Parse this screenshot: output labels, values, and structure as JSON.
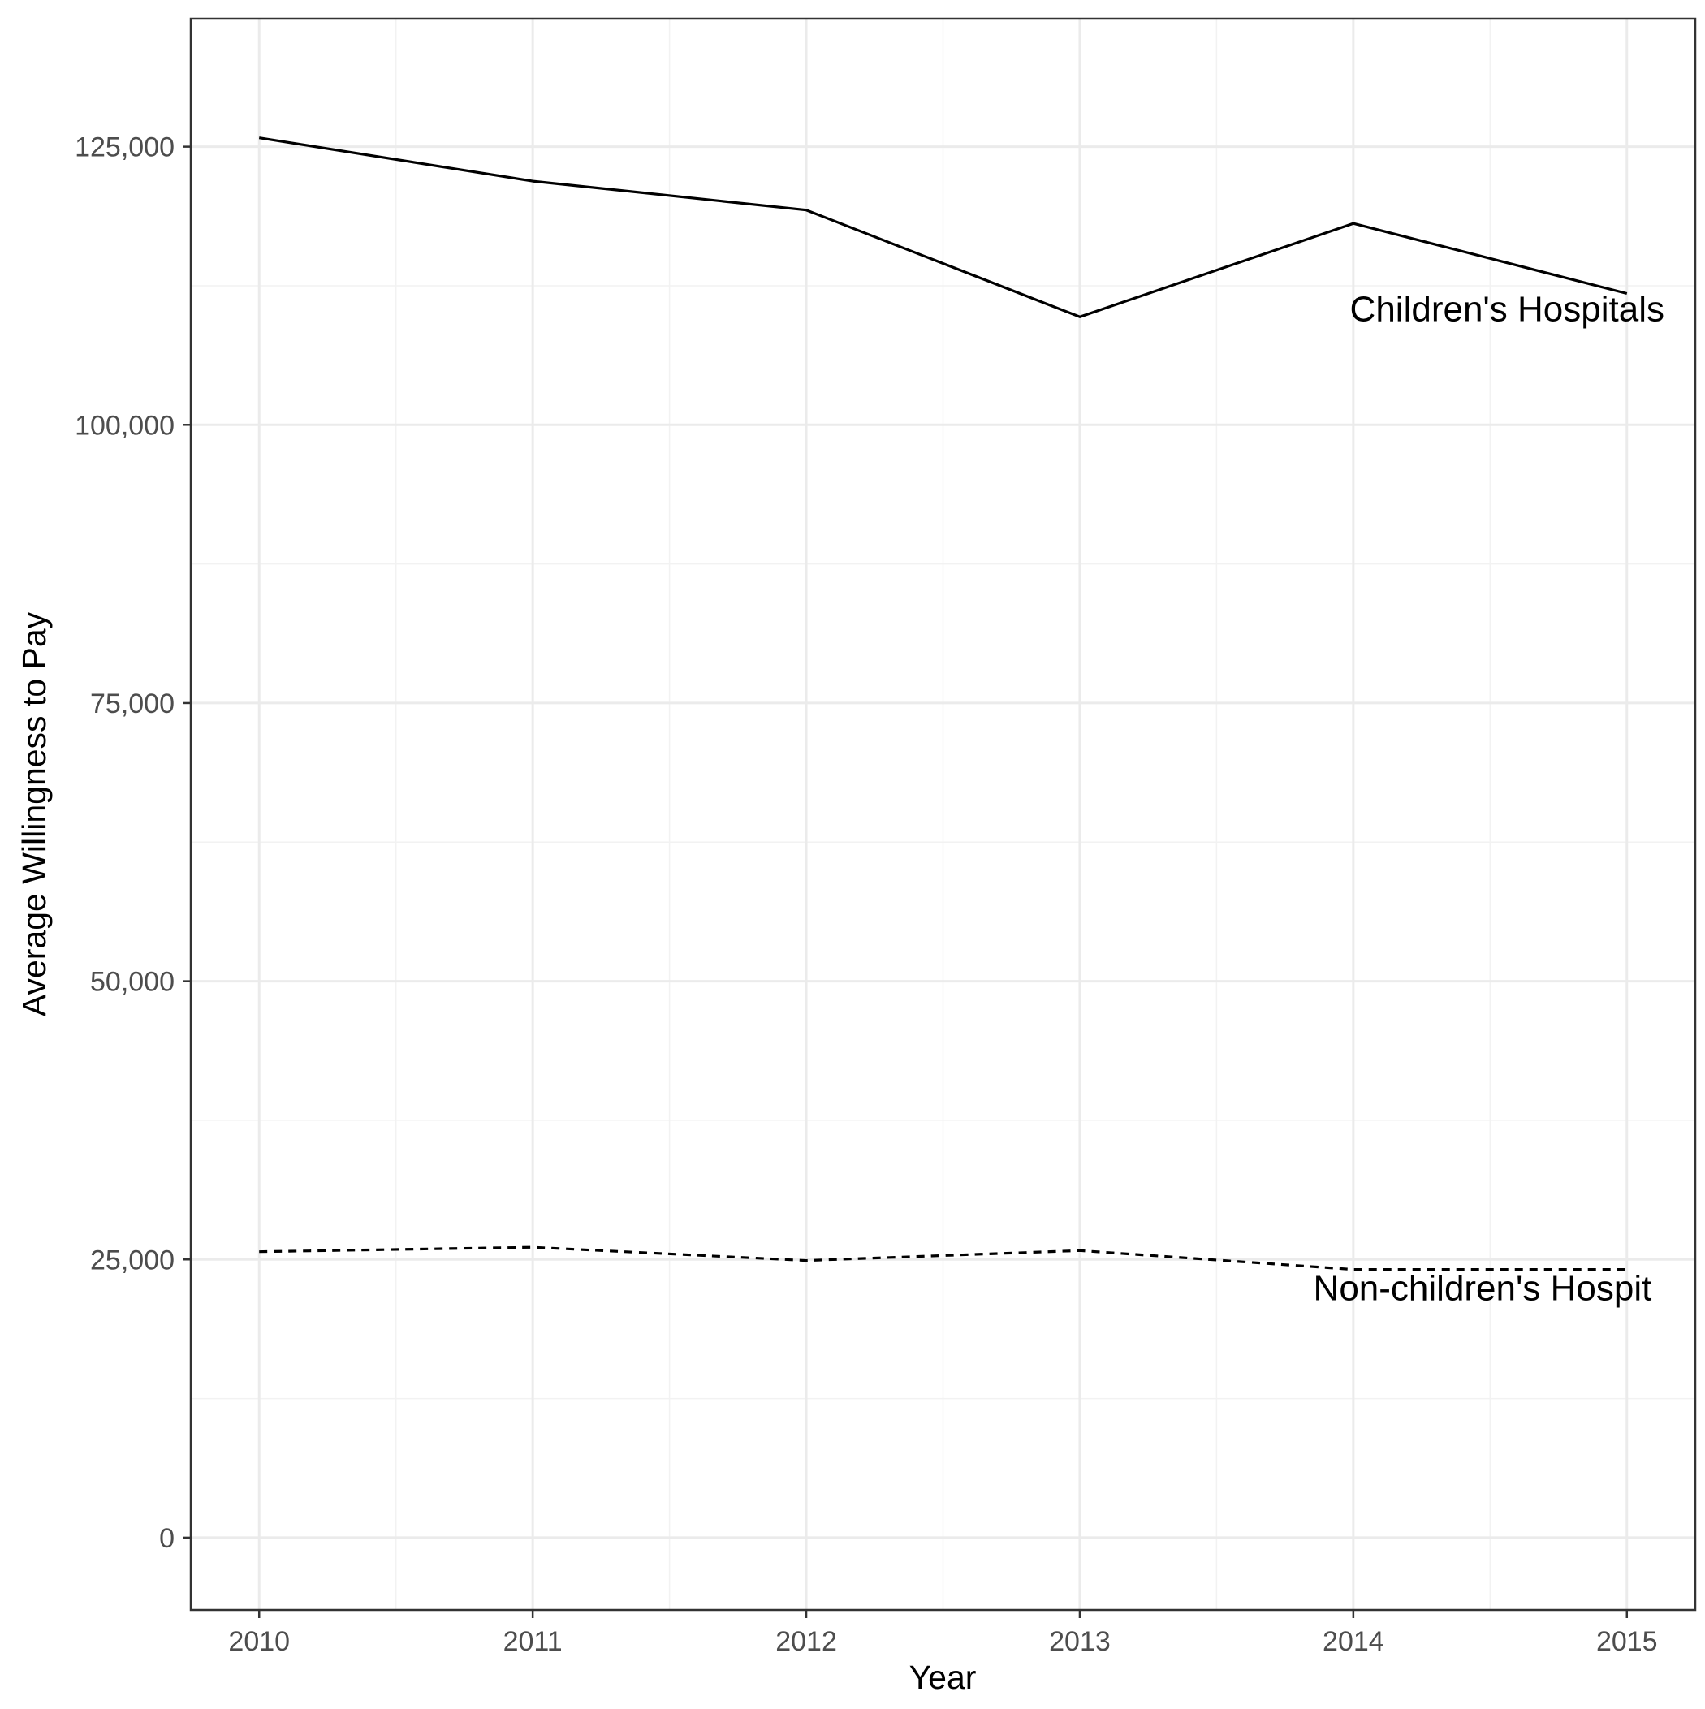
{
  "chart_data": {
    "type": "line",
    "title": "",
    "xlabel": "Year",
    "ylabel": "Average Willingness to Pay",
    "x": [
      2010,
      2011,
      2012,
      2013,
      2014,
      2015
    ],
    "xlim": [
      2009.75,
      2015.25
    ],
    "ylim": [
      -6500,
      136500
    ],
    "x_ticks": [
      2010,
      2011,
      2012,
      2013,
      2014,
      2015
    ],
    "y_ticks": [
      0,
      25000,
      50000,
      75000,
      100000,
      125000
    ],
    "x_tick_labels": [
      "2010",
      "2011",
      "2012",
      "2013",
      "2014",
      "2015"
    ],
    "y_tick_labels": [
      "0",
      "25,000",
      "50,000",
      "75,000",
      "100,000",
      "125,000"
    ],
    "grid": true,
    "legend": "none",
    "series": [
      {
        "name": "Children's Hospitals",
        "label": "Children's Hospitals",
        "line_style": "solid",
        "color": "#000000",
        "values": [
          125800,
          121900,
          119300,
          109700,
          118100,
          111800
        ]
      },
      {
        "name": "Non-children's Hospitals",
        "label": "Non-children's Hospit",
        "line_style": "dashed",
        "color": "#000000",
        "values": [
          25700,
          26100,
          24900,
          25800,
          24100,
          24100
        ]
      }
    ]
  }
}
